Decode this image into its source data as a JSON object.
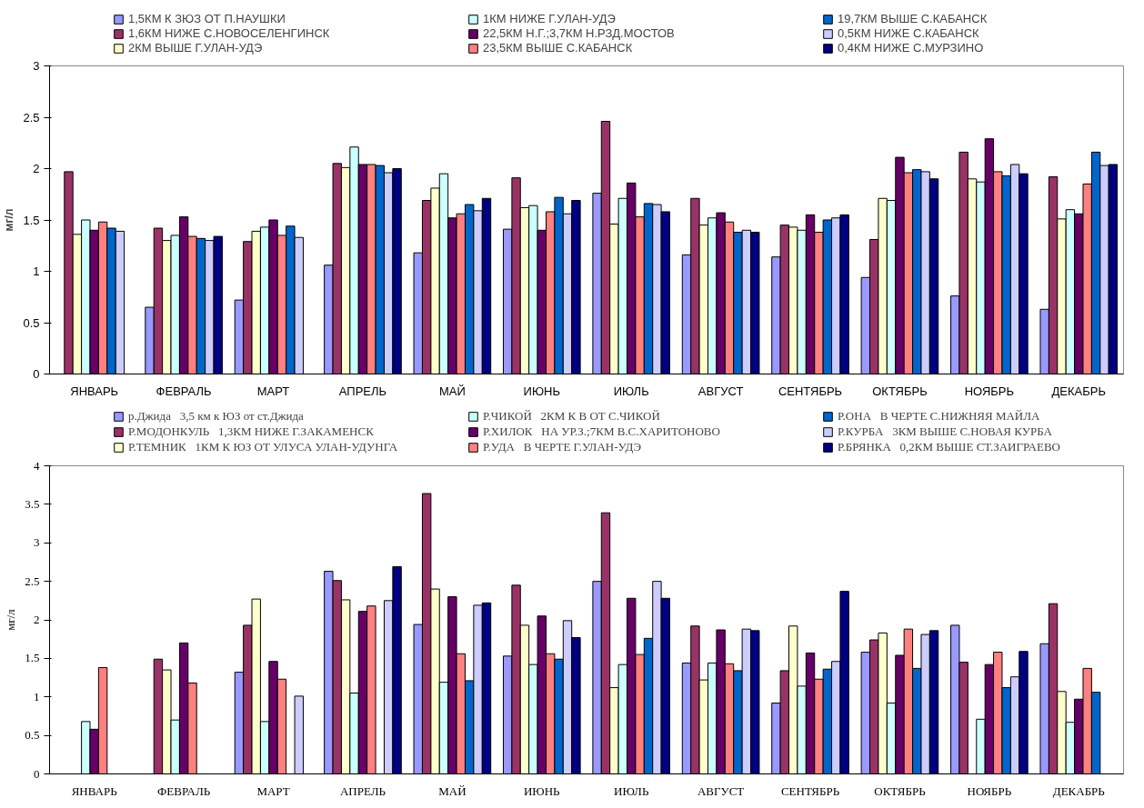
{
  "chart_data": [
    {
      "type": "bar",
      "ylabel": "мг/л",
      "categories": [
        "ЯНВАРЬ",
        "ФЕВРАЛЬ",
        "МАРТ",
        "АПРЕЛЬ",
        "МАЙ",
        "ИЮНЬ",
        "ИЮЛЬ",
        "АВГУСТ",
        "СЕНТЯБРЬ",
        "ОКТЯБРЬ",
        "НОЯБРЬ",
        "ДЕКАБРЬ"
      ],
      "ylim": [
        0,
        3
      ],
      "yticks": [
        0,
        0.5,
        1,
        1.5,
        2,
        2.5,
        3
      ],
      "grid": false,
      "legend": "top",
      "series": [
        {
          "name": "1,5КМ К ЗЮЗ ОТ П.НАУШКИ",
          "color": "#9999ff",
          "values": [
            null,
            0.65,
            0.72,
            1.06,
            1.18,
            1.41,
            1.76,
            1.16,
            1.14,
            0.94,
            0.76,
            0.63
          ]
        },
        {
          "name": "1,6КМ НИЖЕ С.НОВОСЕЛЕНГИНСК",
          "color": "#993366",
          "values": [
            1.97,
            1.42,
            1.29,
            2.05,
            1.69,
            1.91,
            2.46,
            1.71,
            1.45,
            1.31,
            2.16,
            1.92
          ]
        },
        {
          "name": "2КМ ВЫШЕ Г.УЛАН-УДЭ",
          "color": "#ffffcc",
          "values": [
            1.36,
            1.3,
            1.39,
            2.01,
            1.81,
            1.62,
            1.46,
            1.45,
            1.43,
            1.71,
            1.9,
            1.51
          ]
        },
        {
          "name": "1КМ НИЖЕ Г.УЛАН-УДЭ",
          "color": "#ccffff",
          "values": [
            1.5,
            1.35,
            1.43,
            2.21,
            1.95,
            1.64,
            1.71,
            1.52,
            1.4,
            1.69,
            1.87,
            1.6
          ]
        },
        {
          "name": "22,5КМ Н.Г.;3,7КМ Н.РЗД.МОСТОВ",
          "color": "#660066",
          "values": [
            1.4,
            1.53,
            1.5,
            2.04,
            1.52,
            1.4,
            1.86,
            1.57,
            1.55,
            2.11,
            2.29,
            1.56
          ]
        },
        {
          "name": "23,5КМ ВЫШЕ С.КАБАНСК",
          "color": "#ff8080",
          "values": [
            1.48,
            1.34,
            1.35,
            2.04,
            1.56,
            1.58,
            1.53,
            1.48,
            1.38,
            1.96,
            1.97,
            1.85
          ]
        },
        {
          "name": "19,7КМ ВЫШЕ С.КАБАНСК",
          "color": "#0066cc",
          "values": [
            1.42,
            1.32,
            1.44,
            2.03,
            1.65,
            1.72,
            1.66,
            1.38,
            1.5,
            1.99,
            1.93,
            2.16
          ]
        },
        {
          "name": "0,5КМ НИЖЕ С.КАБАНСК",
          "color": "#ccccff",
          "values": [
            1.39,
            1.3,
            1.33,
            1.96,
            1.59,
            1.56,
            1.65,
            1.4,
            1.52,
            1.97,
            2.04,
            2.03
          ]
        },
        {
          "name": "0,4КМ НИЖЕ С.МУРЗИНО",
          "color": "#000080",
          "values": [
            null,
            1.34,
            null,
            2.0,
            1.71,
            1.69,
            1.58,
            1.38,
            1.55,
            1.9,
            1.95,
            2.04
          ]
        }
      ]
    },
    {
      "type": "bar",
      "ylabel": "мг/л",
      "categories": [
        "ЯНВАРЬ",
        "ФЕВРАЛЬ",
        "МАРТ",
        "АПРЕЛЬ",
        "МАЙ",
        "ИЮНЬ",
        "ИЮЛЬ",
        "АВГУСТ",
        "СЕНТЯБРЬ",
        "ОКТЯБРЬ",
        "НОЯБРЬ",
        "ДЕКАБРЬ"
      ],
      "ylim": [
        0,
        4
      ],
      "yticks": [
        0,
        0.5,
        1,
        1.5,
        2,
        2.5,
        3,
        3.5,
        4
      ],
      "grid": false,
      "legend": "top",
      "series": [
        {
          "name": "р.Джида   3,5 км к ЮЗ от ст.Джида",
          "color": "#9999ff",
          "values": [
            null,
            null,
            1.32,
            2.63,
            1.94,
            1.53,
            2.5,
            1.44,
            0.92,
            1.58,
            1.93,
            1.69
          ]
        },
        {
          "name": "Р.МОДОНКУЛЬ   1,3КМ НИЖЕ Г.ЗАКАМЕНСК",
          "color": "#993366",
          "values": [
            null,
            1.49,
            1.93,
            2.51,
            3.64,
            2.45,
            3.39,
            1.92,
            1.34,
            1.74,
            1.45,
            2.21
          ]
        },
        {
          "name": "Р.ТЕМНИК   1КМ К ЮЗ ОТ УЛУСА УЛАН-УДУНГА",
          "color": "#ffffcc",
          "values": [
            null,
            1.35,
            2.27,
            2.26,
            2.4,
            1.93,
            1.12,
            1.22,
            1.92,
            1.83,
            null,
            1.07
          ]
        },
        {
          "name": "Р.ЧИКОЙ   2КМ К В ОТ С.ЧИКОЙ",
          "color": "#ccffff",
          "values": [
            0.68,
            0.7,
            0.68,
            1.05,
            1.19,
            1.42,
            1.42,
            1.44,
            1.14,
            0.92,
            0.71,
            0.67
          ]
        },
        {
          "name": "Р.ХИЛОК   НА УР.З.;7КМ В.С.ХАРИТОНОВО",
          "color": "#660066",
          "values": [
            0.58,
            1.7,
            1.46,
            2.11,
            2.3,
            2.05,
            2.28,
            1.87,
            1.57,
            1.54,
            1.42,
            0.97
          ]
        },
        {
          "name": "Р.УДА   В ЧЕРТЕ Г.УЛАН-УДЭ",
          "color": "#ff8080",
          "values": [
            1.38,
            1.18,
            1.23,
            2.18,
            1.56,
            1.56,
            1.55,
            1.43,
            1.23,
            1.88,
            1.58,
            1.37
          ]
        },
        {
          "name": "Р.ОНА   В ЧЕРТЕ С.НИЖНЯЯ МАЙЛА",
          "color": "#0066cc",
          "values": [
            null,
            null,
            null,
            null,
            1.21,
            1.49,
            1.76,
            1.34,
            1.36,
            1.37,
            1.12,
            1.06
          ]
        },
        {
          "name": "Р.КУРБА   3КМ ВЫШЕ С.НОВАЯ КУРБА",
          "color": "#ccccff",
          "values": [
            null,
            null,
            1.01,
            2.25,
            2.19,
            1.99,
            2.5,
            1.88,
            1.46,
            1.81,
            1.26,
            null
          ]
        },
        {
          "name": "Р.БРЯНКА   0,2КМ ВЫШЕ СТ.ЗАИГРАЕВО",
          "color": "#000080",
          "values": [
            null,
            null,
            null,
            2.69,
            2.22,
            1.77,
            2.28,
            1.86,
            2.37,
            1.86,
            1.59,
            null
          ]
        }
      ]
    }
  ]
}
